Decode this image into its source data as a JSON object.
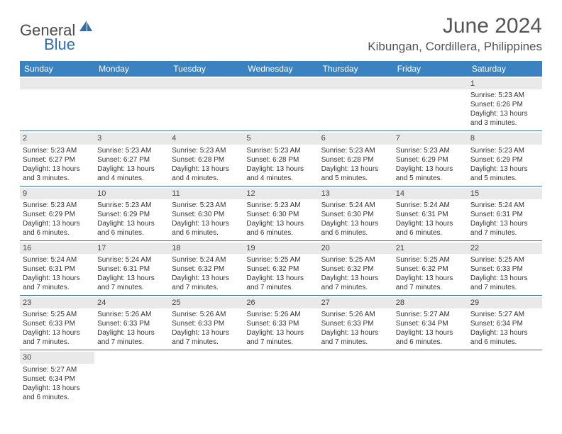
{
  "logo": {
    "part1": "General",
    "part2": "Blue"
  },
  "title": "June 2024",
  "location": "Kibungan, Cordillera, Philippines",
  "colors": {
    "header_bg": "#3b83c0",
    "header_text": "#ffffff",
    "daynum_bg": "#e9e9e9",
    "row_border": "#3b6fa0",
    "logo_gray": "#4a4a4a",
    "logo_blue": "#2b6fb0",
    "text": "#333333"
  },
  "dayHeaders": [
    "Sunday",
    "Monday",
    "Tuesday",
    "Wednesday",
    "Thursday",
    "Friday",
    "Saturday"
  ],
  "weeks": [
    [
      {
        "n": "",
        "sr": "",
        "ss": "",
        "dl": ""
      },
      {
        "n": "",
        "sr": "",
        "ss": "",
        "dl": ""
      },
      {
        "n": "",
        "sr": "",
        "ss": "",
        "dl": ""
      },
      {
        "n": "",
        "sr": "",
        "ss": "",
        "dl": ""
      },
      {
        "n": "",
        "sr": "",
        "ss": "",
        "dl": ""
      },
      {
        "n": "",
        "sr": "",
        "ss": "",
        "dl": ""
      },
      {
        "n": "1",
        "sr": "Sunrise: 5:23 AM",
        "ss": "Sunset: 6:26 PM",
        "dl": "Daylight: 13 hours and 3 minutes."
      }
    ],
    [
      {
        "n": "2",
        "sr": "Sunrise: 5:23 AM",
        "ss": "Sunset: 6:27 PM",
        "dl": "Daylight: 13 hours and 3 minutes."
      },
      {
        "n": "3",
        "sr": "Sunrise: 5:23 AM",
        "ss": "Sunset: 6:27 PM",
        "dl": "Daylight: 13 hours and 4 minutes."
      },
      {
        "n": "4",
        "sr": "Sunrise: 5:23 AM",
        "ss": "Sunset: 6:28 PM",
        "dl": "Daylight: 13 hours and 4 minutes."
      },
      {
        "n": "5",
        "sr": "Sunrise: 5:23 AM",
        "ss": "Sunset: 6:28 PM",
        "dl": "Daylight: 13 hours and 4 minutes."
      },
      {
        "n": "6",
        "sr": "Sunrise: 5:23 AM",
        "ss": "Sunset: 6:28 PM",
        "dl": "Daylight: 13 hours and 5 minutes."
      },
      {
        "n": "7",
        "sr": "Sunrise: 5:23 AM",
        "ss": "Sunset: 6:29 PM",
        "dl": "Daylight: 13 hours and 5 minutes."
      },
      {
        "n": "8",
        "sr": "Sunrise: 5:23 AM",
        "ss": "Sunset: 6:29 PM",
        "dl": "Daylight: 13 hours and 5 minutes."
      }
    ],
    [
      {
        "n": "9",
        "sr": "Sunrise: 5:23 AM",
        "ss": "Sunset: 6:29 PM",
        "dl": "Daylight: 13 hours and 6 minutes."
      },
      {
        "n": "10",
        "sr": "Sunrise: 5:23 AM",
        "ss": "Sunset: 6:29 PM",
        "dl": "Daylight: 13 hours and 6 minutes."
      },
      {
        "n": "11",
        "sr": "Sunrise: 5:23 AM",
        "ss": "Sunset: 6:30 PM",
        "dl": "Daylight: 13 hours and 6 minutes."
      },
      {
        "n": "12",
        "sr": "Sunrise: 5:23 AM",
        "ss": "Sunset: 6:30 PM",
        "dl": "Daylight: 13 hours and 6 minutes."
      },
      {
        "n": "13",
        "sr": "Sunrise: 5:24 AM",
        "ss": "Sunset: 6:30 PM",
        "dl": "Daylight: 13 hours and 6 minutes."
      },
      {
        "n": "14",
        "sr": "Sunrise: 5:24 AM",
        "ss": "Sunset: 6:31 PM",
        "dl": "Daylight: 13 hours and 6 minutes."
      },
      {
        "n": "15",
        "sr": "Sunrise: 5:24 AM",
        "ss": "Sunset: 6:31 PM",
        "dl": "Daylight: 13 hours and 7 minutes."
      }
    ],
    [
      {
        "n": "16",
        "sr": "Sunrise: 5:24 AM",
        "ss": "Sunset: 6:31 PM",
        "dl": "Daylight: 13 hours and 7 minutes."
      },
      {
        "n": "17",
        "sr": "Sunrise: 5:24 AM",
        "ss": "Sunset: 6:31 PM",
        "dl": "Daylight: 13 hours and 7 minutes."
      },
      {
        "n": "18",
        "sr": "Sunrise: 5:24 AM",
        "ss": "Sunset: 6:32 PM",
        "dl": "Daylight: 13 hours and 7 minutes."
      },
      {
        "n": "19",
        "sr": "Sunrise: 5:25 AM",
        "ss": "Sunset: 6:32 PM",
        "dl": "Daylight: 13 hours and 7 minutes."
      },
      {
        "n": "20",
        "sr": "Sunrise: 5:25 AM",
        "ss": "Sunset: 6:32 PM",
        "dl": "Daylight: 13 hours and 7 minutes."
      },
      {
        "n": "21",
        "sr": "Sunrise: 5:25 AM",
        "ss": "Sunset: 6:32 PM",
        "dl": "Daylight: 13 hours and 7 minutes."
      },
      {
        "n": "22",
        "sr": "Sunrise: 5:25 AM",
        "ss": "Sunset: 6:33 PM",
        "dl": "Daylight: 13 hours and 7 minutes."
      }
    ],
    [
      {
        "n": "23",
        "sr": "Sunrise: 5:25 AM",
        "ss": "Sunset: 6:33 PM",
        "dl": "Daylight: 13 hours and 7 minutes."
      },
      {
        "n": "24",
        "sr": "Sunrise: 5:26 AM",
        "ss": "Sunset: 6:33 PM",
        "dl": "Daylight: 13 hours and 7 minutes."
      },
      {
        "n": "25",
        "sr": "Sunrise: 5:26 AM",
        "ss": "Sunset: 6:33 PM",
        "dl": "Daylight: 13 hours and 7 minutes."
      },
      {
        "n": "26",
        "sr": "Sunrise: 5:26 AM",
        "ss": "Sunset: 6:33 PM",
        "dl": "Daylight: 13 hours and 7 minutes."
      },
      {
        "n": "27",
        "sr": "Sunrise: 5:26 AM",
        "ss": "Sunset: 6:33 PM",
        "dl": "Daylight: 13 hours and 7 minutes."
      },
      {
        "n": "28",
        "sr": "Sunrise: 5:27 AM",
        "ss": "Sunset: 6:34 PM",
        "dl": "Daylight: 13 hours and 6 minutes."
      },
      {
        "n": "29",
        "sr": "Sunrise: 5:27 AM",
        "ss": "Sunset: 6:34 PM",
        "dl": "Daylight: 13 hours and 6 minutes."
      }
    ],
    [
      {
        "n": "30",
        "sr": "Sunrise: 5:27 AM",
        "ss": "Sunset: 6:34 PM",
        "dl": "Daylight: 13 hours and 6 minutes."
      },
      {
        "n": "",
        "sr": "",
        "ss": "",
        "dl": ""
      },
      {
        "n": "",
        "sr": "",
        "ss": "",
        "dl": ""
      },
      {
        "n": "",
        "sr": "",
        "ss": "",
        "dl": ""
      },
      {
        "n": "",
        "sr": "",
        "ss": "",
        "dl": ""
      },
      {
        "n": "",
        "sr": "",
        "ss": "",
        "dl": ""
      },
      {
        "n": "",
        "sr": "",
        "ss": "",
        "dl": ""
      }
    ]
  ]
}
